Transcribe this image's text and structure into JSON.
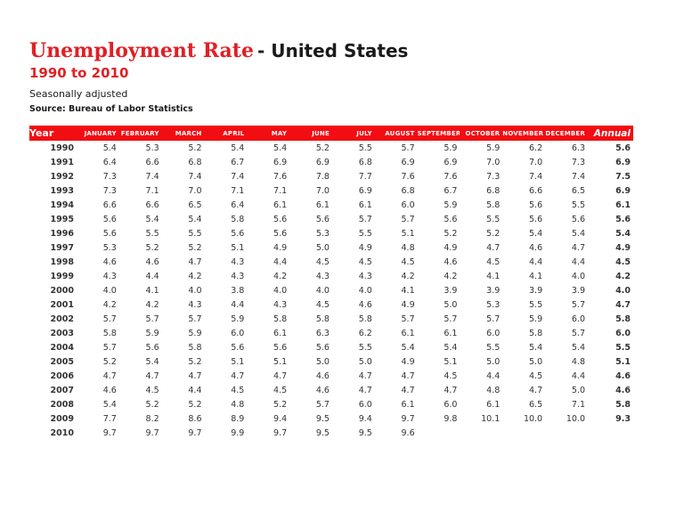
{
  "page": {
    "title_red": "Unemployment Rate",
    "title_black": "- United States",
    "subtitle": "1990 to 2010",
    "note": "Seasonally adjusted",
    "source": "Source: Bureau of Labor Statistics"
  },
  "colors": {
    "accent_red": "#E02025",
    "header_bar_red": "#F20D12",
    "header_text": "#FFFFFF",
    "body_text": "#333333"
  },
  "chart_data": {
    "type": "table",
    "title": "Unemployment Rate - United States, 1990 to 2010, seasonally adjusted (%)",
    "columns": [
      "Year",
      "JANUARY",
      "FEBRUARY",
      "MARCH",
      "APRIL",
      "MAY",
      "JUNE",
      "JULY",
      "AUGUST",
      "SEPTEMBER",
      "OCTOBER",
      "NOVEMBER",
      "DECEMBER",
      "Annual"
    ],
    "rows": [
      {
        "year": "1990",
        "months": [
          "5.4",
          "5.3",
          "5.2",
          "5.4",
          "5.4",
          "5.2",
          "5.5",
          "5.7",
          "5.9",
          "5.9",
          "6.2",
          "6.3"
        ],
        "annual": "5.6"
      },
      {
        "year": "1991",
        "months": [
          "6.4",
          "6.6",
          "6.8",
          "6.7",
          "6.9",
          "6.9",
          "6.8",
          "6.9",
          "6.9",
          "7.0",
          "7.0",
          "7.3"
        ],
        "annual": "6.9"
      },
      {
        "year": "1992",
        "months": [
          "7.3",
          "7.4",
          "7.4",
          "7.4",
          "7.6",
          "7.8",
          "7.7",
          "7.6",
          "7.6",
          "7.3",
          "7.4",
          "7.4"
        ],
        "annual": "7.5"
      },
      {
        "year": "1993",
        "months": [
          "7.3",
          "7.1",
          "7.0",
          "7.1",
          "7.1",
          "7.0",
          "6.9",
          "6.8",
          "6.7",
          "6.8",
          "6.6",
          "6.5"
        ],
        "annual": "6.9"
      },
      {
        "year": "1994",
        "months": [
          "6.6",
          "6.6",
          "6.5",
          "6.4",
          "6.1",
          "6.1",
          "6.1",
          "6.0",
          "5.9",
          "5.8",
          "5.6",
          "5.5"
        ],
        "annual": "6.1"
      },
      {
        "year": "1995",
        "months": [
          "5.6",
          "5.4",
          "5.4",
          "5.8",
          "5.6",
          "5.6",
          "5.7",
          "5.7",
          "5.6",
          "5.5",
          "5.6",
          "5.6"
        ],
        "annual": "5.6"
      },
      {
        "year": "1996",
        "months": [
          "5.6",
          "5.5",
          "5.5",
          "5.6",
          "5.6",
          "5.3",
          "5.5",
          "5.1",
          "5.2",
          "5.2",
          "5.4",
          "5.4"
        ],
        "annual": "5.4"
      },
      {
        "year": "1997",
        "months": [
          "5.3",
          "5.2",
          "5.2",
          "5.1",
          "4.9",
          "5.0",
          "4.9",
          "4.8",
          "4.9",
          "4.7",
          "4.6",
          "4.7"
        ],
        "annual": "4.9"
      },
      {
        "year": "1998",
        "months": [
          "4.6",
          "4.6",
          "4.7",
          "4.3",
          "4.4",
          "4.5",
          "4.5",
          "4.5",
          "4.6",
          "4.5",
          "4.4",
          "4.4"
        ],
        "annual": "4.5"
      },
      {
        "year": "1999",
        "months": [
          "4.3",
          "4.4",
          "4.2",
          "4.3",
          "4.2",
          "4.3",
          "4.3",
          "4.2",
          "4.2",
          "4.1",
          "4.1",
          "4.0"
        ],
        "annual": "4.2"
      },
      {
        "year": "2000",
        "months": [
          "4.0",
          "4.1",
          "4.0",
          "3.8",
          "4.0",
          "4.0",
          "4.0",
          "4.1",
          "3.9",
          "3.9",
          "3.9",
          "3.9"
        ],
        "annual": "4.0"
      },
      {
        "year": "2001",
        "months": [
          "4.2",
          "4.2",
          "4.3",
          "4.4",
          "4.3",
          "4.5",
          "4.6",
          "4.9",
          "5.0",
          "5.3",
          "5.5",
          "5.7"
        ],
        "annual": "4.7"
      },
      {
        "year": "2002",
        "months": [
          "5.7",
          "5.7",
          "5.7",
          "5.9",
          "5.8",
          "5.8",
          "5.8",
          "5.7",
          "5.7",
          "5.7",
          "5.9",
          "6.0"
        ],
        "annual": "5.8"
      },
      {
        "year": "2003",
        "months": [
          "5.8",
          "5.9",
          "5.9",
          "6.0",
          "6.1",
          "6.3",
          "6.2",
          "6.1",
          "6.1",
          "6.0",
          "5.8",
          "5.7"
        ],
        "annual": "6.0"
      },
      {
        "year": "2004",
        "months": [
          "5.7",
          "5.6",
          "5.8",
          "5.6",
          "5.6",
          "5.6",
          "5.5",
          "5.4",
          "5.4",
          "5.5",
          "5.4",
          "5.4"
        ],
        "annual": "5.5"
      },
      {
        "year": "2005",
        "months": [
          "5.2",
          "5.4",
          "5.2",
          "5.1",
          "5.1",
          "5.0",
          "5.0",
          "4.9",
          "5.1",
          "5.0",
          "5.0",
          "4.8"
        ],
        "annual": "5.1"
      },
      {
        "year": "2006",
        "months": [
          "4.7",
          "4.7",
          "4.7",
          "4.7",
          "4.7",
          "4.6",
          "4.7",
          "4.7",
          "4.5",
          "4.4",
          "4.5",
          "4.4"
        ],
        "annual": "4.6"
      },
      {
        "year": "2007",
        "months": [
          "4.6",
          "4.5",
          "4.4",
          "4.5",
          "4.5",
          "4.6",
          "4.7",
          "4.7",
          "4.7",
          "4.8",
          "4.7",
          "5.0"
        ],
        "annual": "4.6"
      },
      {
        "year": "2008",
        "months": [
          "5.4",
          "5.2",
          "5.2",
          "4.8",
          "5.2",
          "5.7",
          "6.0",
          "6.1",
          "6.0",
          "6.1",
          "6.5",
          "7.1"
        ],
        "annual": "5.8"
      },
      {
        "year": "2009",
        "months": [
          "7.7",
          "8.2",
          "8.6",
          "8.9",
          "9.4",
          "9.5",
          "9.4",
          "9.7",
          "9.8",
          "10.1",
          "10.0",
          "10.0"
        ],
        "annual": "9.3"
      },
      {
        "year": "2010",
        "months": [
          "9.7",
          "9.7",
          "9.7",
          "9.9",
          "9.7",
          "9.5",
          "9.5",
          "9.6",
          "",
          "",
          "",
          ""
        ],
        "annual": ""
      }
    ]
  }
}
